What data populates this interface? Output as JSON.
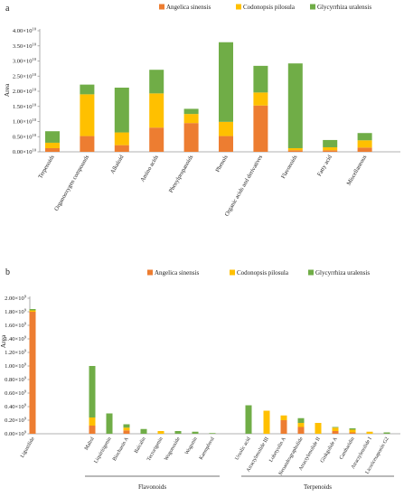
{
  "panel_labels": [
    "a",
    "b"
  ],
  "chart_data": [
    {
      "type": "bar",
      "stacked": true,
      "panel": "a",
      "ylabel": "Area",
      "xlabel": "",
      "ylim": [
        0,
        4.0
      ],
      "exponent": "10",
      "yticks": [
        "0.00×10",
        "0.50×10",
        "1.00×10",
        "1.50×10",
        "2.00×10",
        "2.50×10",
        "3.00×10",
        "3.50×10",
        "4.00×10"
      ],
      "ytick_values": [
        0,
        0.5,
        1.0,
        1.5,
        2.0,
        2.5,
        3.0,
        3.5,
        4.0
      ],
      "legend": "top",
      "grid": false,
      "colors": [
        "#ED7D31",
        "#FFC000",
        "#70AD47"
      ],
      "categories": [
        "Terpenoids",
        "Organooxygen compounds",
        "Alkaloid",
        "Amino acids",
        "Phenylpropanoids",
        "Phenols",
        "Organic acids and derivatives",
        "Flavonoids",
        "Fatty acid",
        "Miscellaneous"
      ],
      "series": [
        {
          "name": "Angelica sinensis",
          "values": [
            0.12,
            0.52,
            0.22,
            0.8,
            0.95,
            0.52,
            1.53,
            0.05,
            0.05,
            0.14
          ]
        },
        {
          "name": "Codonopsis pilosula",
          "values": [
            0.18,
            1.38,
            0.42,
            1.13,
            0.3,
            0.47,
            0.43,
            0.07,
            0.1,
            0.24
          ]
        },
        {
          "name": "Glycyrrhiza uralensis",
          "values": [
            0.38,
            0.32,
            1.48,
            0.78,
            0.17,
            2.63,
            0.88,
            2.8,
            0.24,
            0.24
          ]
        }
      ]
    },
    {
      "type": "bar",
      "stacked": true,
      "panel": "b",
      "ylabel": "Area",
      "xlabel": "",
      "ylim": [
        0,
        2.0
      ],
      "exponent": "9",
      "yticks": [
        "0.00×10",
        "0.20×10",
        "0.40×10",
        "0.60×10",
        "0.80×10",
        "1.00×10",
        "1.20×10",
        "1.40×10",
        "1.60×10",
        "1.80×10",
        "2.00×10"
      ],
      "ytick_values": [
        0,
        0.2,
        0.4,
        0.6,
        0.8,
        1.0,
        1.2,
        1.4,
        1.6,
        1.8,
        2.0
      ],
      "legend": "top",
      "grid": false,
      "colors": [
        "#ED7D31",
        "#FFC000",
        "#70AD47"
      ],
      "categories": [
        "Ligustilide",
        "Maltol",
        "Liquiritigenin",
        "Biochanin A",
        "Baicalin",
        "Tectorigenin",
        "Wogonoside",
        "Wogonin",
        "Kaempferol",
        "Ursolic acid",
        "Atractylenolide III",
        "Lobetyolin A",
        "Neoandrographolide",
        "Atractylenolide II",
        "Ginkgolide A",
        "Cantharidin",
        "Atractylenolide I",
        "Licoricesaponin G2"
      ],
      "groups": [
        {
          "label": "Flavonoids",
          "from": 1,
          "to": 8
        },
        {
          "label": "Terpenoids",
          "from": 9,
          "to": 17
        }
      ],
      "series": [
        {
          "name": "Angelica sinensis",
          "values": [
            1.8,
            0.12,
            0.0,
            0.05,
            0.0,
            0.0,
            0.0,
            0.0,
            0.0,
            0.0,
            0.0,
            0.2,
            0.1,
            0.0,
            0.04,
            0.02,
            0.0,
            0.0
          ]
        },
        {
          "name": "Codonopsis pilosula",
          "values": [
            0.02,
            0.12,
            0.0,
            0.04,
            0.0,
            0.04,
            0.0,
            0.0,
            0.0,
            0.0,
            0.34,
            0.07,
            0.06,
            0.16,
            0.05,
            0.04,
            0.03,
            0.0
          ]
        },
        {
          "name": "Glycyrrhiza uralensis",
          "values": [
            0.02,
            0.76,
            0.3,
            0.05,
            0.07,
            0.0,
            0.04,
            0.03,
            0.01,
            0.42,
            0.0,
            0.0,
            0.07,
            0.0,
            0.01,
            0.02,
            0.0,
            0.02
          ]
        }
      ]
    }
  ]
}
